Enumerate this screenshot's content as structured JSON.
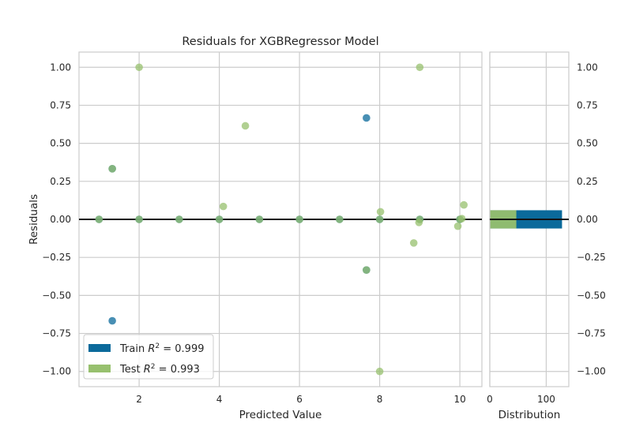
{
  "chart_data": {
    "type": "scatter",
    "title": "Residuals for XGBRegressor Model",
    "xlabel": "Predicted Value",
    "ylabel": "Residuals",
    "xlim": [
      0.5,
      10.55
    ],
    "ylim": [
      -1.1,
      1.1
    ],
    "xticks": [
      "2",
      "4",
      "6",
      "8",
      "10"
    ],
    "yticks": [
      "−1.00",
      "−0.75",
      "−0.50",
      "−0.25",
      "0.00",
      "0.25",
      "0.50",
      "0.75",
      "1.00"
    ],
    "grid": true,
    "legend_position": "bottom-left",
    "series": [
      {
        "name": "Train",
        "r2_label": "Train R² = 0.999",
        "r2_prefix": "Train ",
        "r2_value": "0.999",
        "color": "#0b6a9b",
        "points": [
          [
            1.0,
            0.0
          ],
          [
            1.33,
            0.333
          ],
          [
            1.33,
            -0.667
          ],
          [
            2.0,
            0.0
          ],
          [
            3.0,
            0.0
          ],
          [
            4.0,
            0.0
          ],
          [
            5.0,
            0.0
          ],
          [
            6.0,
            0.0
          ],
          [
            7.0,
            0.0
          ],
          [
            7.67,
            0.667
          ],
          [
            7.67,
            -0.333
          ],
          [
            8.0,
            0.0
          ],
          [
            9.0,
            0.0
          ],
          [
            10.0,
            0.0
          ]
        ]
      },
      {
        "name": "Test",
        "r2_label": "Test R² = 0.993",
        "r2_prefix": "Test ",
        "r2_value": "0.993",
        "color": "#97c06e",
        "points": [
          [
            1.0,
            0.0
          ],
          [
            1.33,
            0.333
          ],
          [
            2.0,
            1.0
          ],
          [
            2.0,
            0.0
          ],
          [
            3.0,
            0.0
          ],
          [
            4.0,
            0.0
          ],
          [
            4.1,
            0.085
          ],
          [
            4.65,
            0.615
          ],
          [
            5.0,
            0.0
          ],
          [
            6.0,
            0.0
          ],
          [
            7.0,
            0.0
          ],
          [
            7.67,
            -0.333
          ],
          [
            8.0,
            0.0
          ],
          [
            8.02,
            0.05
          ],
          [
            8.0,
            -1.0
          ],
          [
            8.85,
            -0.155
          ],
          [
            9.0,
            1.0
          ],
          [
            9.0,
            0.0
          ],
          [
            8.98,
            -0.02
          ],
          [
            9.95,
            -0.045
          ],
          [
            10.0,
            0.0
          ],
          [
            10.05,
            0.005
          ],
          [
            10.1,
            0.095
          ]
        ]
      }
    ],
    "distribution": {
      "xlabel": "Distribution",
      "xticks": [
        "0",
        "100"
      ],
      "xlim": [
        0,
        140
      ],
      "bars": [
        {
          "series": "Train",
          "count": 128,
          "bin": [
            -0.06,
            0.06
          ]
        },
        {
          "series": "Test",
          "count": 47,
          "bin": [
            -0.06,
            0.06
          ]
        }
      ]
    }
  }
}
